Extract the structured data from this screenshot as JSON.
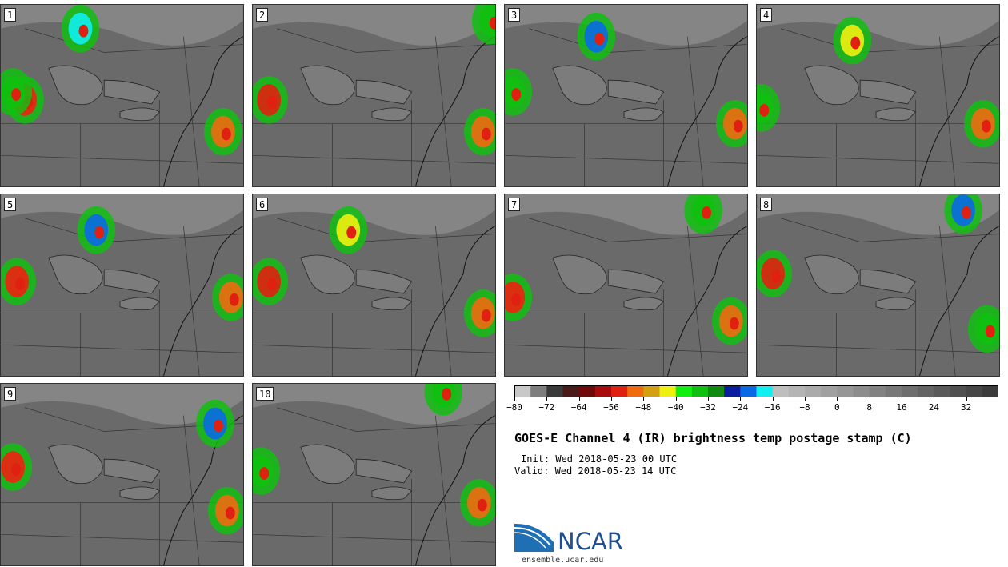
{
  "title": "GOES-E Channel 4 (IR) brightness temp postage stamp (C)",
  "init_label": "Init: Wed 2018-05-23 00 UTC",
  "valid_label": "Valid: Wed 2018-05-23 14 UTC",
  "logo_text": "NCAR",
  "site": "ensemble.ucar.edu",
  "panels": [
    {
      "label": "1"
    },
    {
      "label": "2"
    },
    {
      "label": "3"
    },
    {
      "label": "4"
    },
    {
      "label": "5"
    },
    {
      "label": "6"
    },
    {
      "label": "7"
    },
    {
      "label": "8"
    },
    {
      "label": "9"
    },
    {
      "label": "10"
    }
  ],
  "colorbar": {
    "min": -80,
    "max": 40,
    "tick_labels": [
      "−80",
      "−72",
      "−64",
      "−56",
      "−48",
      "−40",
      "−32",
      "−24",
      "−16",
      "−8",
      "0",
      "8",
      "16",
      "24",
      "32"
    ],
    "tick_values": [
      -80,
      -72,
      -64,
      -56,
      -48,
      -40,
      -32,
      -24,
      -16,
      -8,
      0,
      8,
      16,
      24,
      32
    ],
    "colors": [
      "#c8c8c8",
      "#7e7e7e",
      "#3a3a3a",
      "#4a1a1a",
      "#6e0a0a",
      "#a80c0c",
      "#e02010",
      "#f06a10",
      "#d2a010",
      "#f0f010",
      "#10f010",
      "#10c010",
      "#108a10",
      "#0a1e9c",
      "#0a6ae6",
      "#10f0f0",
      "#bebebe",
      "#b4b4b4",
      "#aaaaaa",
      "#a0a0a0",
      "#969696",
      "#8c8c8c",
      "#828282",
      "#787878",
      "#6e6e6e",
      "#646464",
      "#5a5a5a",
      "#505050",
      "#464646",
      "#3c3c3c"
    ]
  }
}
